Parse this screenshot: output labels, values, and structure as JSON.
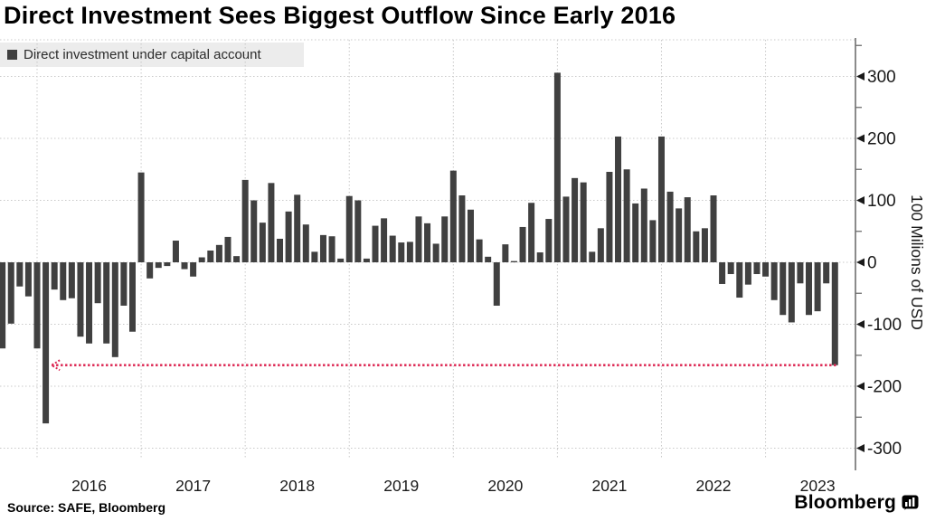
{
  "title": "Direct Investment Sees Biggest Outflow Since Early 2016",
  "legend": {
    "label": "Direct investment under capital account",
    "swatch_color": "#3f3f3f"
  },
  "source_line": "Source: SAFE, Bloomberg",
  "branding": {
    "wordmark": "Bloomberg",
    "icon": "bloomberg-chart-bubble-icon"
  },
  "colors": {
    "bar": "#404040",
    "grid": "#c9c9c9",
    "axis": "#6e6e6e",
    "tick_text": "#1a1a1a",
    "annotation": "#dd2a55",
    "legend_bg": "#ececec"
  },
  "chart_data": {
    "type": "bar",
    "title": "Direct Investment Sees Biggest Outflow Since Early 2016",
    "series_name": "Direct investment under capital account",
    "ylabel": "100 Milions of USD",
    "xlabel": "",
    "x_start": "2015-09",
    "x_interval": "monthly",
    "values": [
      -139,
      -99,
      -39,
      -55,
      -139,
      -260,
      -44,
      -61,
      -58,
      -120,
      -131,
      -66,
      -131,
      -153,
      -70,
      -112,
      145,
      -26,
      -9,
      -6,
      35,
      -11,
      -23,
      8,
      19,
      28,
      41,
      10,
      133,
      100,
      64,
      128,
      38,
      82,
      109,
      61,
      17,
      44,
      42,
      6,
      107,
      100,
      6,
      59,
      71,
      43,
      32,
      33,
      74,
      63,
      30,
      74,
      148,
      108,
      85,
      37,
      9,
      -70,
      29,
      2,
      57,
      96,
      16,
      70,
      306,
      106,
      136,
      129,
      17,
      55,
      146,
      203,
      150,
      95,
      119,
      68,
      203,
      114,
      87,
      105,
      50,
      55,
      108,
      -35,
      -19,
      -57,
      -36,
      -19,
      -23,
      -61,
      -85,
      -97,
      -34,
      -85,
      -79,
      -34,
      -166
    ],
    "x_tick_year_labels": [
      "2016",
      "2017",
      "2018",
      "2019",
      "2020",
      "2021",
      "2022",
      "2023"
    ],
    "y_major_ticks": [
      300,
      200,
      100,
      0,
      -100,
      -200,
      -300
    ],
    "y_minor_tick_step": 50,
    "ylim": [
      -350,
      350
    ],
    "grid": "dotted",
    "legend_position": "top-left",
    "annotation": {
      "type": "horizontal-reference-line",
      "style": "dotted",
      "value": -166,
      "from_month": "2016-02",
      "arrow": "left"
    }
  }
}
